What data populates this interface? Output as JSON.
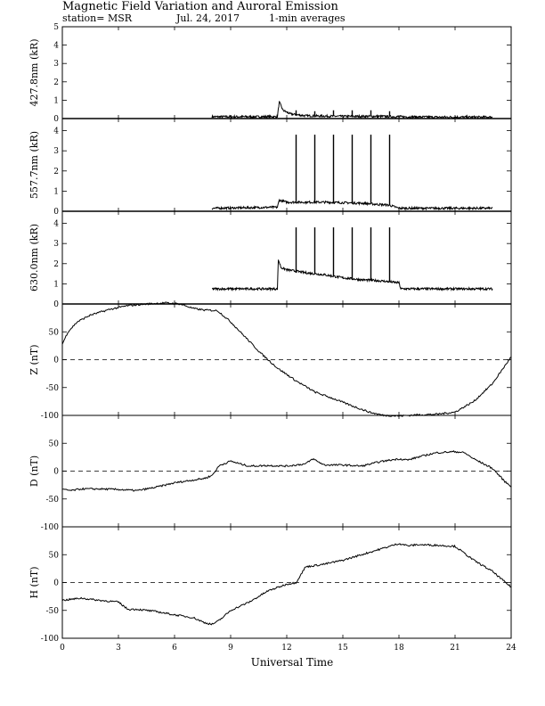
{
  "header": {
    "title": "Magnetic Field Variation and Auroral Emission",
    "station": "station= MSR",
    "date": "Jul. 24, 2017",
    "averaging": "1-min averages"
  },
  "chart_data": [
    {
      "type": "line",
      "ylabel": "427.8nm (kR)",
      "xlim": [
        0,
        24
      ],
      "ylim": [
        0,
        5
      ],
      "yticks": [
        0,
        1,
        2,
        3,
        4,
        5
      ],
      "zero_line": false,
      "series": [
        {
          "x": [
            8,
            11.5,
            11.6,
            11.8,
            12.2,
            13,
            15,
            17,
            18,
            20,
            23
          ],
          "y": [
            0.1,
            0.1,
            0.9,
            0.45,
            0.25,
            0.15,
            0.12,
            0.12,
            0.1,
            0.08,
            0.08
          ]
        }
      ],
      "spikes": [
        {
          "x": 12.5,
          "y": 0.45
        },
        {
          "x": 13.5,
          "y": 0.4
        },
        {
          "x": 14.5,
          "y": 0.45
        },
        {
          "x": 15.5,
          "y": 0.45
        },
        {
          "x": 16.5,
          "y": 0.45
        },
        {
          "x": 17.5,
          "y": 0.4
        }
      ]
    },
    {
      "type": "line",
      "ylabel": "557.7nm (kR)",
      "xlim": [
        0,
        24
      ],
      "ylim": [
        0,
        4.6
      ],
      "yticks": [
        0,
        1,
        2,
        3,
        4
      ],
      "zero_line": false,
      "series": [
        {
          "x": [
            8,
            11.5,
            11.6,
            12,
            14,
            16,
            17.5,
            18,
            20,
            23
          ],
          "y": [
            0.15,
            0.2,
            0.55,
            0.45,
            0.45,
            0.4,
            0.3,
            0.15,
            0.15,
            0.15
          ]
        }
      ],
      "spikes": [
        {
          "x": 12.5,
          "y": 3.8
        },
        {
          "x": 13.5,
          "y": 3.8
        },
        {
          "x": 14.5,
          "y": 3.8
        },
        {
          "x": 15.5,
          "y": 3.8
        },
        {
          "x": 16.5,
          "y": 3.8
        },
        {
          "x": 17.5,
          "y": 3.8
        }
      ]
    },
    {
      "type": "line",
      "ylabel": "630.0nm (kR)",
      "xlim": [
        0,
        24
      ],
      "ylim": [
        0,
        4.6
      ],
      "yticks": [
        0,
        1,
        2,
        3,
        4
      ],
      "zero_line": false,
      "series": [
        {
          "x": [
            8,
            11.5,
            11.55,
            11.7,
            12,
            13,
            14,
            15,
            16,
            17,
            18,
            18.1,
            20,
            23
          ],
          "y": [
            0.75,
            0.75,
            2.2,
            1.8,
            1.7,
            1.55,
            1.45,
            1.3,
            1.2,
            1.15,
            1.05,
            0.75,
            0.75,
            0.75
          ]
        }
      ],
      "spikes": [
        {
          "x": 12.5,
          "y": 3.8
        },
        {
          "x": 13.5,
          "y": 3.8
        },
        {
          "x": 14.5,
          "y": 3.8
        },
        {
          "x": 15.5,
          "y": 3.8
        },
        {
          "x": 16.5,
          "y": 3.8
        },
        {
          "x": 17.5,
          "y": 3.8
        }
      ]
    },
    {
      "type": "line",
      "ylabel": "Z (nT)",
      "xlim": [
        0,
        24
      ],
      "ylim": [
        -100,
        100
      ],
      "yticks": [
        -100,
        -50,
        0,
        50
      ],
      "zero_line": true,
      "series": [
        {
          "x": [
            0,
            0.3,
            0.8,
            1.5,
            2.5,
            3.5,
            4.5,
            5.5,
            6.3,
            7,
            7.6,
            8.3,
            9,
            9.8,
            10.6,
            11.5,
            12.5,
            13.5,
            14.5,
            15.5,
            16.5,
            17.2,
            18,
            19,
            20,
            21,
            22,
            23,
            24
          ],
          "y": [
            28,
            50,
            68,
            80,
            90,
            97,
            100,
            102,
            100,
            92,
            89,
            88,
            68,
            40,
            12,
            -15,
            -38,
            -58,
            -70,
            -83,
            -95,
            -100,
            -101,
            -99,
            -98,
            -94,
            -75,
            -43,
            5
          ]
        }
      ]
    },
    {
      "type": "line",
      "ylabel": "D (nT)",
      "xlim": [
        0,
        24
      ],
      "ylim": [
        -100,
        100
      ],
      "yticks": [
        -100,
        -50,
        0,
        50
      ],
      "zero_line": true,
      "series": [
        {
          "x": [
            0,
            0.5,
            1,
            2,
            3,
            4,
            5,
            6,
            7,
            7.6,
            8,
            8.4,
            9,
            9.6,
            10,
            11,
            12,
            13,
            13.4,
            14,
            15,
            16,
            17,
            18,
            18.5,
            19,
            20,
            21,
            21.5,
            22,
            23,
            23.7,
            24
          ],
          "y": [
            -33,
            -35,
            -32,
            -32,
            -33,
            -35,
            -29,
            -21,
            -16,
            -13,
            -8,
            10,
            18,
            12,
            9,
            10,
            9,
            13,
            22,
            11,
            11,
            9,
            17,
            22,
            20,
            25,
            33,
            35,
            33,
            22,
            5,
            -20,
            -27
          ]
        }
      ]
    },
    {
      "type": "line",
      "ylabel": "H (nT)",
      "xlim": [
        0,
        24
      ],
      "ylim": [
        -100,
        100
      ],
      "yticks": [
        -100,
        -50,
        0,
        50
      ],
      "zero_line": true,
      "series": [
        {
          "x": [
            0,
            0.5,
            1,
            2,
            3,
            3.5,
            4,
            5,
            6,
            7,
            7.6,
            8,
            8.3,
            8.6,
            9,
            10,
            11,
            12,
            12.5,
            13,
            14,
            15,
            16,
            17,
            18,
            18.5,
            19,
            20,
            21,
            22,
            23,
            23.7,
            24
          ],
          "y": [
            -32,
            -30,
            -28,
            -32,
            -35,
            -48,
            -48,
            -52,
            -58,
            -63,
            -72,
            -75,
            -70,
            -62,
            -50,
            -35,
            -15,
            -3,
            0,
            28,
            33,
            40,
            50,
            60,
            70,
            66,
            68,
            67,
            65,
            40,
            20,
            0,
            -8
          ]
        }
      ]
    }
  ],
  "x_axis": {
    "ticks": [
      0,
      3,
      6,
      9,
      12,
      15,
      18,
      21,
      24
    ],
    "title": "Universal Time"
  }
}
